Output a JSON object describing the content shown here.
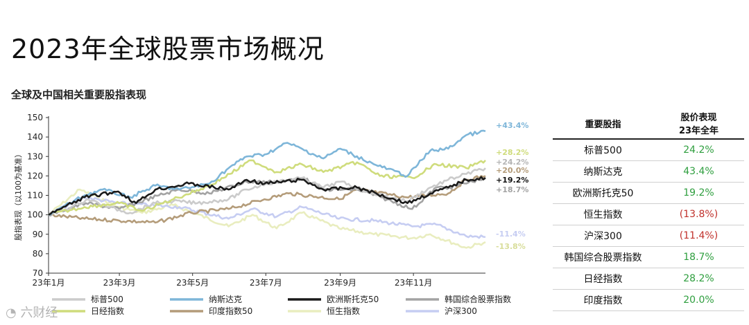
{
  "page": {
    "title": "2023年全球股票市场概况",
    "subtitle": "全球及中国相关重要股指表现",
    "watermark": "六财经"
  },
  "chart_data": {
    "type": "line",
    "ylabel": "股指表现（以100为基准）",
    "ylim": [
      70,
      150
    ],
    "yticks": [
      70,
      80,
      90,
      100,
      110,
      120,
      130,
      140,
      150
    ],
    "xlim": [
      "2023-01-01",
      "2023-12-31"
    ],
    "xticks": [
      {
        "label": "23年1月",
        "date": "2023-01-01"
      },
      {
        "label": "23年3月",
        "date": "2023-03-01"
      },
      {
        "label": "23年5月",
        "date": "2023-05-01"
      },
      {
        "label": "23年7月",
        "date": "2023-07-01"
      },
      {
        "label": "23年9月",
        "date": "2023-09-01"
      },
      {
        "label": "23年11月",
        "date": "2023-11-01"
      }
    ],
    "grid": false,
    "legend_position": "bottom",
    "series": [
      {
        "name": "标普500",
        "color": "#cbcbcb",
        "end_label": "+24.2%",
        "points": [
          [
            "2023-01-01",
            100
          ],
          [
            "2023-01-20",
            104
          ],
          [
            "2023-02-03",
            108
          ],
          [
            "2023-02-20",
            104
          ],
          [
            "2023-03-10",
            101
          ],
          [
            "2023-03-31",
            106
          ],
          [
            "2023-04-15",
            107
          ],
          [
            "2023-05-05",
            106
          ],
          [
            "2023-05-31",
            108
          ],
          [
            "2023-06-15",
            113
          ],
          [
            "2023-07-01",
            116
          ],
          [
            "2023-07-31",
            119
          ],
          [
            "2023-08-18",
            114
          ],
          [
            "2023-09-01",
            117
          ],
          [
            "2023-09-29",
            111
          ],
          [
            "2023-10-27",
            107
          ],
          [
            "2023-11-15",
            114
          ],
          [
            "2023-11-30",
            118
          ],
          [
            "2023-12-15",
            121
          ],
          [
            "2023-12-31",
            124
          ]
        ]
      },
      {
        "name": "纳斯达克",
        "color": "#7eb6d9",
        "end_label": "+43.4%",
        "points": [
          [
            "2023-01-01",
            100
          ],
          [
            "2023-01-31",
            110
          ],
          [
            "2023-02-15",
            113
          ],
          [
            "2023-03-10",
            109
          ],
          [
            "2023-03-31",
            115
          ],
          [
            "2023-04-20",
            113
          ],
          [
            "2023-05-15",
            116
          ],
          [
            "2023-05-31",
            124
          ],
          [
            "2023-06-15",
            130
          ],
          [
            "2023-06-30",
            131
          ],
          [
            "2023-07-19",
            137
          ],
          [
            "2023-08-18",
            129
          ],
          [
            "2023-09-01",
            134
          ],
          [
            "2023-09-29",
            126
          ],
          [
            "2023-10-27",
            120
          ],
          [
            "2023-11-15",
            133
          ],
          [
            "2023-11-30",
            134
          ],
          [
            "2023-12-15",
            141
          ],
          [
            "2023-12-31",
            143
          ]
        ]
      },
      {
        "name": "欧洲斯托克50",
        "color": "#1a1a1a",
        "end_label": "+19.2%",
        "points": [
          [
            "2023-01-01",
            100
          ],
          [
            "2023-01-31",
            109
          ],
          [
            "2023-02-28",
            112
          ],
          [
            "2023-03-15",
            106
          ],
          [
            "2023-03-31",
            113
          ],
          [
            "2023-04-28",
            116
          ],
          [
            "2023-05-31",
            113
          ],
          [
            "2023-06-15",
            118
          ],
          [
            "2023-06-30",
            116
          ],
          [
            "2023-07-31",
            118
          ],
          [
            "2023-08-18",
            113
          ],
          [
            "2023-09-15",
            114
          ],
          [
            "2023-10-27",
            106
          ],
          [
            "2023-11-15",
            111
          ],
          [
            "2023-11-30",
            114
          ],
          [
            "2023-12-15",
            118
          ],
          [
            "2023-12-31",
            119
          ]
        ]
      },
      {
        "name": "韩国综合股票指数",
        "color": "#a3a3a3",
        "end_label": "+18.7%",
        "points": [
          [
            "2023-01-01",
            100
          ],
          [
            "2023-02-01",
            106
          ],
          [
            "2023-03-01",
            103
          ],
          [
            "2023-04-03",
            110
          ],
          [
            "2023-04-20",
            113
          ],
          [
            "2023-05-15",
            111
          ],
          [
            "2023-06-15",
            117
          ],
          [
            "2023-07-15",
            117
          ],
          [
            "2023-08-01",
            119
          ],
          [
            "2023-08-18",
            113
          ],
          [
            "2023-09-15",
            113
          ],
          [
            "2023-10-05",
            109
          ],
          [
            "2023-10-31",
            103
          ],
          [
            "2023-11-20",
            114
          ],
          [
            "2023-12-01",
            114
          ],
          [
            "2023-12-31",
            119
          ]
        ]
      },
      {
        "name": "日经指数",
        "color": "#cfdc7c",
        "end_label": "+28.2%",
        "points": [
          [
            "2023-01-01",
            100
          ],
          [
            "2023-01-31",
            104
          ],
          [
            "2023-03-01",
            106
          ],
          [
            "2023-03-20",
            102
          ],
          [
            "2023-04-15",
            108
          ],
          [
            "2023-05-15",
            115
          ],
          [
            "2023-06-01",
            121
          ],
          [
            "2023-06-19",
            128
          ],
          [
            "2023-07-10",
            122
          ],
          [
            "2023-07-31",
            126
          ],
          [
            "2023-08-18",
            122
          ],
          [
            "2023-09-15",
            127
          ],
          [
            "2023-10-04",
            120
          ],
          [
            "2023-10-31",
            119
          ],
          [
            "2023-11-20",
            126
          ],
          [
            "2023-12-15",
            124
          ],
          [
            "2023-12-31",
            128
          ]
        ]
      },
      {
        "name": "印度指数50",
        "color": "#b49c7a",
        "end_label": "+20.0%",
        "points": [
          [
            "2023-01-01",
            100
          ],
          [
            "2023-01-31",
            98
          ],
          [
            "2023-03-01",
            97
          ],
          [
            "2023-03-31",
            96
          ],
          [
            "2023-04-30",
            101
          ],
          [
            "2023-05-31",
            103
          ],
          [
            "2023-06-30",
            108
          ],
          [
            "2023-07-20",
            111
          ],
          [
            "2023-08-31",
            108
          ],
          [
            "2023-09-15",
            113
          ],
          [
            "2023-10-26",
            109
          ],
          [
            "2023-11-30",
            111
          ],
          [
            "2023-12-15",
            118
          ],
          [
            "2023-12-31",
            120
          ]
        ]
      },
      {
        "name": "恒生指数",
        "color": "#e9edbf",
        "end_label": "-13.8%",
        "points": [
          [
            "2023-01-01",
            100
          ],
          [
            "2023-01-27",
            113
          ],
          [
            "2023-02-28",
            104
          ],
          [
            "2023-03-20",
            101
          ],
          [
            "2023-04-15",
            105
          ],
          [
            "2023-05-31",
            94
          ],
          [
            "2023-06-20",
            100
          ],
          [
            "2023-07-10",
            93
          ],
          [
            "2023-07-31",
            101
          ],
          [
            "2023-08-31",
            93
          ],
          [
            "2023-09-29",
            90
          ],
          [
            "2023-10-31",
            88
          ],
          [
            "2023-11-15",
            90
          ],
          [
            "2023-12-15",
            83
          ],
          [
            "2023-12-31",
            86
          ]
        ]
      },
      {
        "name": "沪深300",
        "color": "#c6cdf2",
        "end_label": "-11.4%",
        "points": [
          [
            "2023-01-01",
            100
          ],
          [
            "2023-01-31",
            109
          ],
          [
            "2023-02-28",
            106
          ],
          [
            "2023-04-20",
            104
          ],
          [
            "2023-05-31",
            98
          ],
          [
            "2023-06-20",
            103
          ],
          [
            "2023-07-10",
            99
          ],
          [
            "2023-07-31",
            104
          ],
          [
            "2023-08-31",
            98
          ],
          [
            "2023-09-29",
            97
          ],
          [
            "2023-10-31",
            94
          ],
          [
            "2023-11-20",
            95
          ],
          [
            "2023-12-15",
            89
          ],
          [
            "2023-12-31",
            88.6
          ]
        ]
      }
    ]
  },
  "table": {
    "header": {
      "col1": "重要股指",
      "col2_line1": "股价表现",
      "col2_line2": "23年全年"
    },
    "rows": [
      {
        "name": "标普500",
        "value": "24.2%",
        "sign": "pos"
      },
      {
        "name": "纳斯达克",
        "value": "43.4%",
        "sign": "pos"
      },
      {
        "name": "欧洲斯托克50",
        "value": "19.2%",
        "sign": "pos"
      },
      {
        "name": "恒生指数",
        "value": "(13.8%)",
        "sign": "neg"
      },
      {
        "name": "沪深300",
        "value": "(11.4%)",
        "sign": "neg"
      },
      {
        "name": "韩国综合股票指数",
        "value": "18.7%",
        "sign": "pos"
      },
      {
        "name": "日经指数",
        "value": "28.2%",
        "sign": "pos"
      },
      {
        "name": "印度指数",
        "value": "20.0%",
        "sign": "pos"
      }
    ]
  }
}
